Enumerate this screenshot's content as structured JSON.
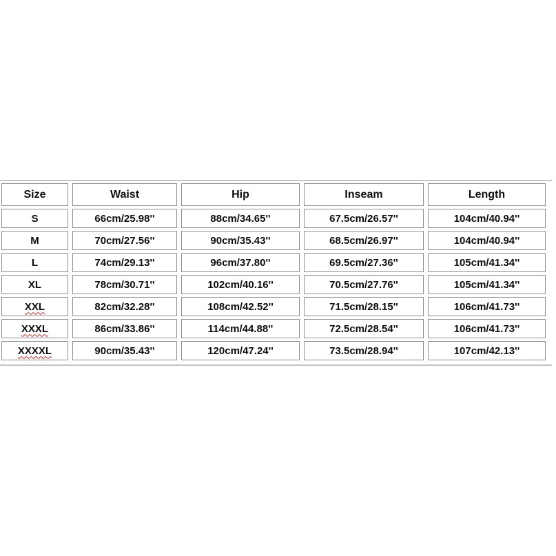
{
  "chart_data": {
    "type": "table",
    "title": "",
    "columns": [
      "Size",
      "Waist",
      "Hip",
      "Inseam",
      "Length"
    ],
    "rows": [
      [
        "S",
        "66cm/25.98''",
        "88cm/34.65''",
        "67.5cm/26.57''",
        "104cm/40.94''"
      ],
      [
        "M",
        "70cm/27.56''",
        "90cm/35.43''",
        "68.5cm/26.97''",
        "104cm/40.94''"
      ],
      [
        "L",
        "74cm/29.13''",
        "96cm/37.80''",
        "69.5cm/27.36''",
        "105cm/41.34''"
      ],
      [
        "XL",
        "78cm/30.71''",
        "102cm/40.16''",
        "70.5cm/27.76''",
        "105cm/41.34''"
      ],
      [
        "XXL",
        "82cm/32.28''",
        "108cm/42.52''",
        "71.5cm/28.15''",
        "106cm/41.73''"
      ],
      [
        "XXXL",
        "86cm/33.86''",
        "114cm/44.88''",
        "72.5cm/28.54''",
        "106cm/41.73''"
      ],
      [
        "XXXXL",
        "90cm/35.43''",
        "120cm/47.24''",
        "73.5cm/28.94''",
        "107cm/42.13''"
      ]
    ],
    "spellcheck_underline_sizes": [
      "XXL",
      "XXXL",
      "XXXXL"
    ],
    "layout_hints": {
      "header_row": true,
      "cell_borders": true,
      "text_alignment": "center"
    }
  },
  "colors": {
    "background": "#ffffff",
    "cell_border": "#8d8d8d",
    "clipped_row_border": "#c4c4c4",
    "text": "#0d0d0d",
    "spellcheck_wavy": "#cc2222"
  }
}
